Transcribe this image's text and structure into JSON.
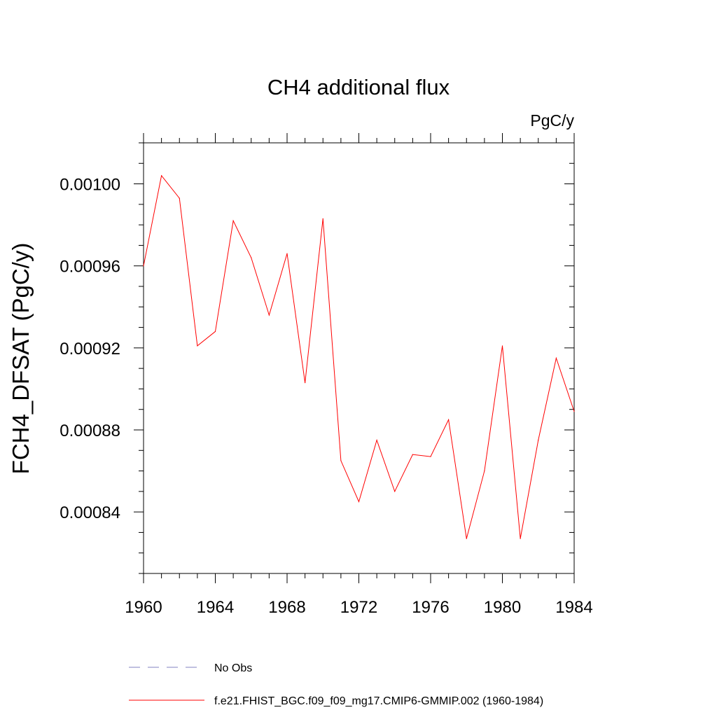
{
  "chart_data": {
    "type": "line",
    "title": "CH4 additional flux",
    "units_label": "PgC/y",
    "xlabel": "",
    "ylabel": "FCH4_DFSAT  (PgC/y)",
    "xlim": [
      1960,
      1984
    ],
    "ylim": [
      0.00081,
      0.00102
    ],
    "x_ticks": [
      1960,
      1964,
      1968,
      1972,
      1976,
      1980,
      1984
    ],
    "x_tick_labels": [
      "1960",
      "1964",
      "1968",
      "1972",
      "1976",
      "1980",
      "1984"
    ],
    "y_ticks": [
      0.00084,
      0.00088,
      0.00092,
      0.00096,
      0.001
    ],
    "y_tick_labels": [
      "0.00084",
      "0.00088",
      "0.00092",
      "0.00096",
      "0.00100"
    ],
    "grid": false,
    "legend_position": "bottom",
    "series": [
      {
        "name": "f.e21.FHIST_BGC.f09_f09_mg17.CMIP6-GMMIP.002 (1960-1984)",
        "color": "#ff0000",
        "line_style": "solid",
        "x": [
          1960,
          1961,
          1962,
          1963,
          1964,
          1965,
          1966,
          1967,
          1968,
          1969,
          1970,
          1971,
          1972,
          1973,
          1974,
          1975,
          1976,
          1977,
          1978,
          1979,
          1980,
          1981,
          1982,
          1983,
          1984
        ],
        "y": [
          0.00096,
          0.001004,
          0.000993,
          0.000921,
          0.000928,
          0.000982,
          0.000964,
          0.000936,
          0.000966,
          0.000903,
          0.000983,
          0.000865,
          0.000845,
          0.000875,
          0.00085,
          0.000868,
          0.000867,
          0.000885,
          0.000827,
          0.00086,
          0.000921,
          0.000827,
          0.000875,
          0.000915,
          0.000889
        ]
      }
    ],
    "legend": [
      {
        "label": "No Obs",
        "color": "#8080c0",
        "line_style": "dashed"
      },
      {
        "label": "f.e21.FHIST_BGC.f09_f09_mg17.CMIP6-GMMIP.002 (1960-1984)",
        "color": "#ff0000",
        "line_style": "solid"
      }
    ]
  }
}
